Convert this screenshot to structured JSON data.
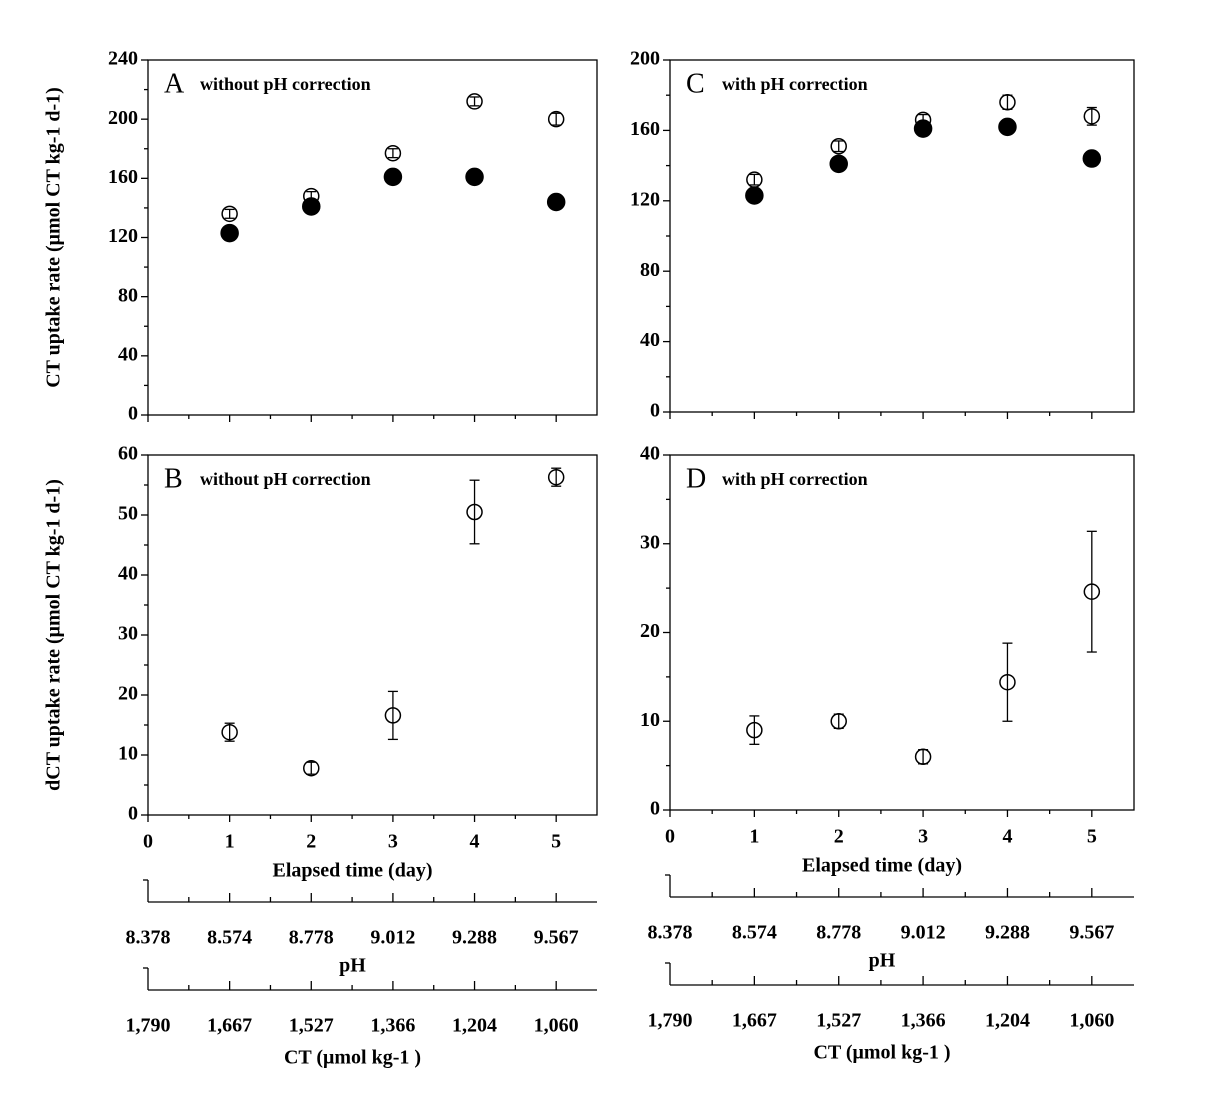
{
  "chart_data": [
    {
      "type": "scatter",
      "panel_label": "A",
      "annotation": "without pH correction",
      "y_label": "CT uptake rate (μmol CT kg-1 d-1)",
      "x": [
        1,
        2,
        3,
        4,
        5
      ],
      "xlim": [
        0,
        5.5
      ],
      "xticks": [
        0,
        1,
        2,
        3,
        4,
        5
      ],
      "xtick_labels": false,
      "ylim": [
        0,
        240
      ],
      "yticks": [
        0,
        40,
        80,
        120,
        160,
        200,
        240
      ],
      "series": [
        {
          "marker": "open",
          "color": "#000000",
          "values": [
            136,
            148,
            177,
            212,
            200
          ],
          "errors": [
            3,
            3,
            3,
            3,
            4
          ]
        },
        {
          "marker": "filled",
          "color": "#000000",
          "values": [
            123,
            141,
            161,
            161,
            144
          ]
        }
      ]
    },
    {
      "type": "scatter",
      "panel_label": "B",
      "annotation": "without pH correction",
      "y_label": "dCT uptake rate (μmol CT kg-1 d-1)",
      "x_label": "Elapsed time (day)",
      "x": [
        1,
        2,
        3,
        4,
        5
      ],
      "xlim": [
        0,
        5.5
      ],
      "xticks": [
        0,
        1,
        2,
        3,
        4,
        5
      ],
      "xtick_labels": true,
      "ylim": [
        0,
        60
      ],
      "yticks": [
        0,
        10,
        20,
        30,
        40,
        50,
        60
      ],
      "series": [
        {
          "marker": "open",
          "color": "#000000",
          "values": [
            13.8,
            7.8,
            16.6,
            50.5,
            56.3
          ],
          "errors": [
            1.5,
            1,
            4,
            5.3,
            1.5
          ]
        }
      ],
      "secondary_axes": [
        {
          "label": "pH",
          "ticks": [
            {
              "value": 0,
              "label": "8.378"
            },
            {
              "value": 1,
              "label": "8.574"
            },
            {
              "value": 2,
              "label": "8.778"
            },
            {
              "value": 3,
              "label": "9.012"
            },
            {
              "value": 4,
              "label": "9.288"
            },
            {
              "value": 5,
              "label": "9.567"
            }
          ]
        },
        {
          "label": "CT (μmol  kg-1 )",
          "ticks": [
            {
              "value": 0,
              "label": "1,790"
            },
            {
              "value": 1,
              "label": "1,667"
            },
            {
              "value": 2,
              "label": "1,527"
            },
            {
              "value": 3,
              "label": "1,366"
            },
            {
              "value": 4,
              "label": "1,204"
            },
            {
              "value": 5,
              "label": "1,060"
            }
          ]
        }
      ]
    },
    {
      "type": "scatter",
      "panel_label": "C",
      "annotation": "with pH correction",
      "x": [
        1,
        2,
        3,
        4,
        5
      ],
      "xlim": [
        0,
        5.5
      ],
      "xticks": [
        0,
        1,
        2,
        3,
        4,
        5
      ],
      "xtick_labels": false,
      "ylim": [
        0,
        200
      ],
      "yticks": [
        0,
        40,
        80,
        120,
        160,
        200
      ],
      "series": [
        {
          "marker": "open",
          "color": "#000000",
          "values": [
            132,
            151,
            166,
            176,
            168
          ],
          "errors": [
            3,
            3,
            3,
            4,
            5
          ]
        },
        {
          "marker": "filled",
          "color": "#000000",
          "values": [
            123,
            141,
            161,
            162,
            144
          ]
        }
      ]
    },
    {
      "type": "scatter",
      "panel_label": "D",
      "annotation": "with pH correction",
      "x_label": "Elapsed time (day)",
      "x": [
        1,
        2,
        3,
        4,
        5
      ],
      "xlim": [
        0,
        5.5
      ],
      "xticks": [
        0,
        1,
        2,
        3,
        4,
        5
      ],
      "xtick_labels": true,
      "ylim": [
        0,
        40
      ],
      "yticks": [
        0,
        10,
        20,
        30,
        40
      ],
      "series": [
        {
          "marker": "open",
          "color": "#000000",
          "values": [
            9,
            10,
            6,
            14.4,
            24.6
          ],
          "errors": [
            1.6,
            0.8,
            0.8,
            4.4,
            6.8
          ]
        }
      ],
      "secondary_axes": [
        {
          "label": "pH",
          "ticks": [
            {
              "value": 0,
              "label": "8.378"
            },
            {
              "value": 1,
              "label": "8.574"
            },
            {
              "value": 2,
              "label": "8.778"
            },
            {
              "value": 3,
              "label": "9.012"
            },
            {
              "value": 4,
              "label": "9.288"
            },
            {
              "value": 5,
              "label": "9.567"
            }
          ]
        },
        {
          "label": "CT (μmol  kg-1 )",
          "ticks": [
            {
              "value": 0,
              "label": "1,790"
            },
            {
              "value": 1,
              "label": "1,667"
            },
            {
              "value": 2,
              "label": "1,527"
            },
            {
              "value": 3,
              "label": "1,366"
            },
            {
              "value": 4,
              "label": "1,204"
            },
            {
              "value": 5,
              "label": "1,060"
            }
          ]
        }
      ]
    }
  ]
}
